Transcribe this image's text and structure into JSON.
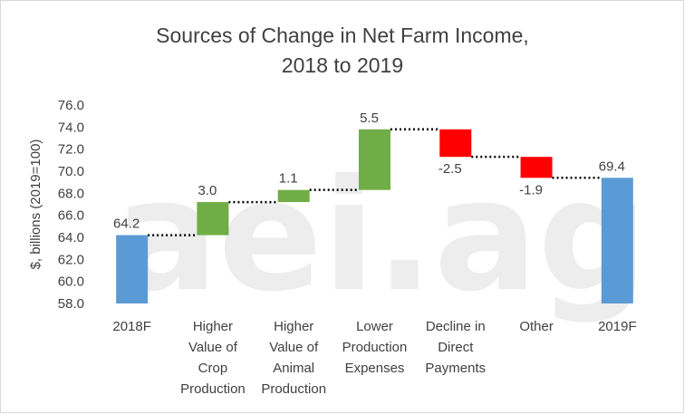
{
  "chart_data": {
    "type": "waterfall",
    "title": "Sources of Change in Net Farm Income, 2018 to 2019",
    "title_lines": [
      "Sources of Change in Net Farm Income,",
      "2018 to 2019"
    ],
    "ylabel": "$, billions (2019=100)",
    "xlabel": "",
    "ylim": [
      58.0,
      76.0
    ],
    "yticks": [
      "58.0",
      "60.0",
      "62.0",
      "64.0",
      "66.0",
      "68.0",
      "70.0",
      "72.0",
      "74.0",
      "76.0"
    ],
    "grid": false,
    "legend": "none",
    "watermark": "aei.ag",
    "categories": [
      [
        "2018F"
      ],
      [
        "Higher",
        "Value of",
        "Crop",
        "Production"
      ],
      [
        "Higher",
        "Value of",
        "Animal",
        "Production"
      ],
      [
        "Lower",
        "Production",
        "Expenses"
      ],
      [
        "Decline in",
        "Direct",
        "Payments"
      ],
      [
        "Other"
      ],
      [
        "2019F"
      ]
    ],
    "steps": [
      {
        "kind": "total",
        "value": 64.2,
        "label": "64.2"
      },
      {
        "kind": "delta",
        "value": 3.0,
        "label": "3.0"
      },
      {
        "kind": "delta",
        "value": 1.1,
        "label": "1.1"
      },
      {
        "kind": "delta",
        "value": 5.5,
        "label": "5.5"
      },
      {
        "kind": "delta",
        "value": -2.5,
        "label": "-2.5"
      },
      {
        "kind": "delta",
        "value": -1.9,
        "label": "-1.9"
      },
      {
        "kind": "total",
        "value": 69.4,
        "label": "69.4"
      }
    ],
    "colors": {
      "total": "#5b9bd5",
      "increase": "#70ad47",
      "decrease": "#ff0000",
      "connector": "#000000",
      "text": "#404040"
    }
  }
}
